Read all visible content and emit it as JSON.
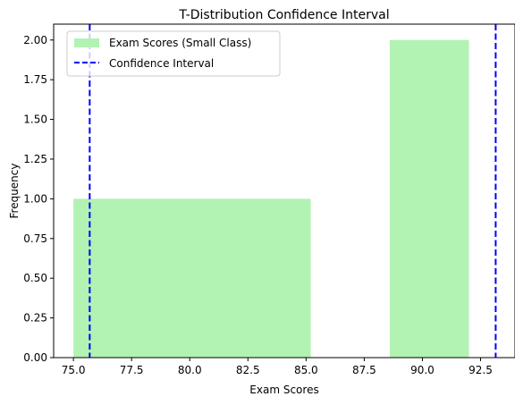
{
  "chart_data": {
    "type": "bar",
    "title": "T-Distribution Confidence Interval",
    "xlabel": "Exam Scores",
    "ylabel": "Frequency",
    "xlim": [
      74.15,
      93.98
    ],
    "ylim": [
      0,
      2.1
    ],
    "xticks": [
      75.0,
      77.5,
      80.0,
      82.5,
      85.0,
      87.5,
      90.0,
      92.5
    ],
    "xtick_labels": [
      "75.0",
      "77.5",
      "80.0",
      "82.5",
      "85.0",
      "87.5",
      "90.0",
      "92.5"
    ],
    "yticks": [
      0,
      0.25,
      0.5,
      0.75,
      1.0,
      1.25,
      1.5,
      1.75,
      2.0
    ],
    "ytick_labels": [
      "0.00",
      "0.25",
      "0.50",
      "0.75",
      "1.00",
      "1.25",
      "1.50",
      "1.75",
      "2.00"
    ],
    "histogram": {
      "name": "Exam Scores (Small Class)",
      "color": "#b2f2b2",
      "bins": [
        {
          "x0": 75.0,
          "x1": 85.2,
          "count": 1
        },
        {
          "x0": 88.6,
          "x1": 92.0,
          "count": 2
        }
      ]
    },
    "confidence_interval": {
      "name": "Confidence Interval",
      "color": "#0000ff",
      "lower": 75.7,
      "upper": 93.15
    },
    "legend": {
      "placement": "top-left"
    },
    "grid": false
  }
}
